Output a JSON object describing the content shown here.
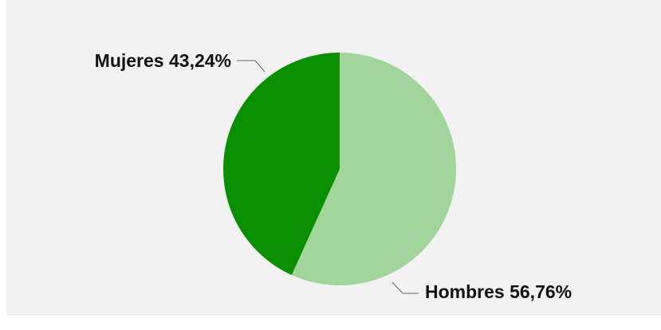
{
  "chart_data": {
    "type": "pie",
    "categories": [
      "Hombres",
      "Mujeres"
    ],
    "values": [
      56.76,
      43.24
    ],
    "value_labels": [
      "56,76%",
      "43,24%"
    ],
    "colors": [
      "#a1d59b",
      "#0a8f00"
    ]
  }
}
